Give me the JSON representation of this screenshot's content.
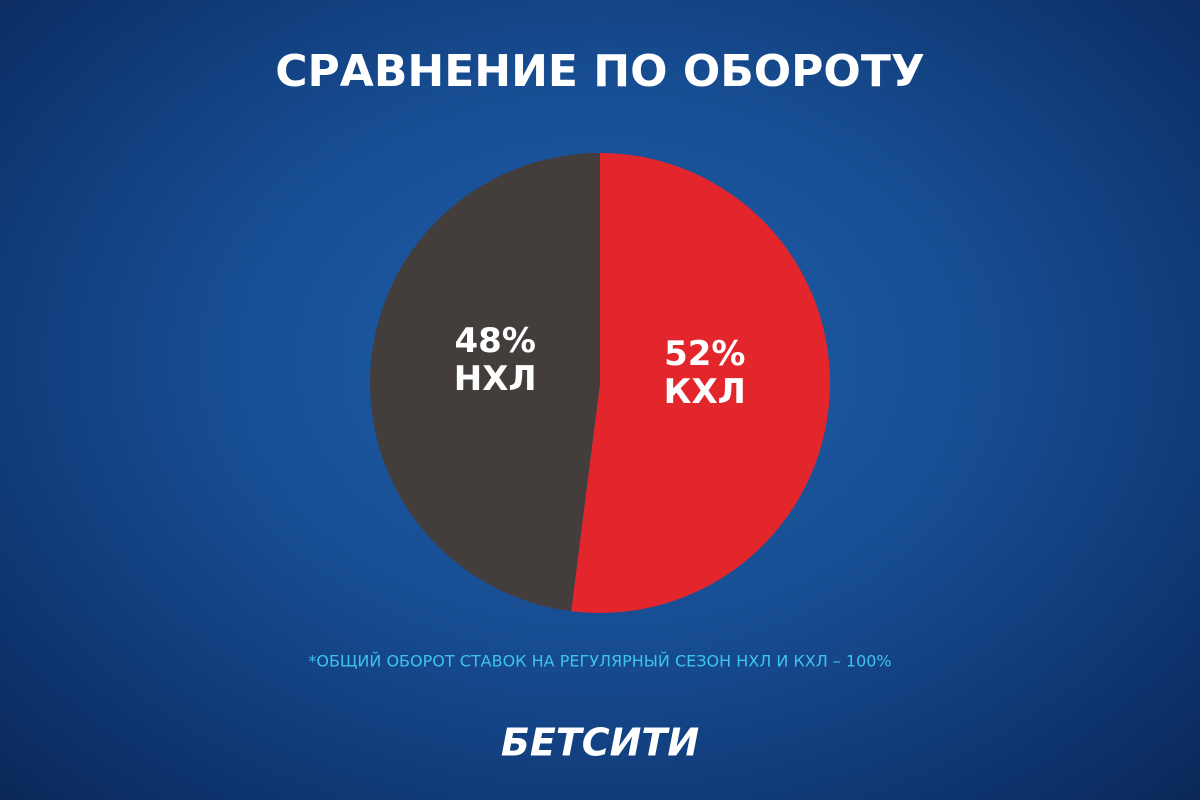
{
  "chart_data": {
    "type": "pie",
    "title": "СРАВНЕНИЕ ПО ОБОРОТУ",
    "categories": [
      "КХЛ",
      "НХЛ"
    ],
    "values": [
      52,
      48
    ],
    "value_labels": [
      "52%",
      "48%"
    ],
    "colors": [
      "#e3262b",
      "#433d3c"
    ],
    "footnote": "*ОБЩИЙ ОБОРОТ СТАВОК НА РЕГУЛЯРНЫЙ СЕЗОН НХЛ И КХЛ – 100%",
    "brand": "БЕТСИТИ"
  }
}
